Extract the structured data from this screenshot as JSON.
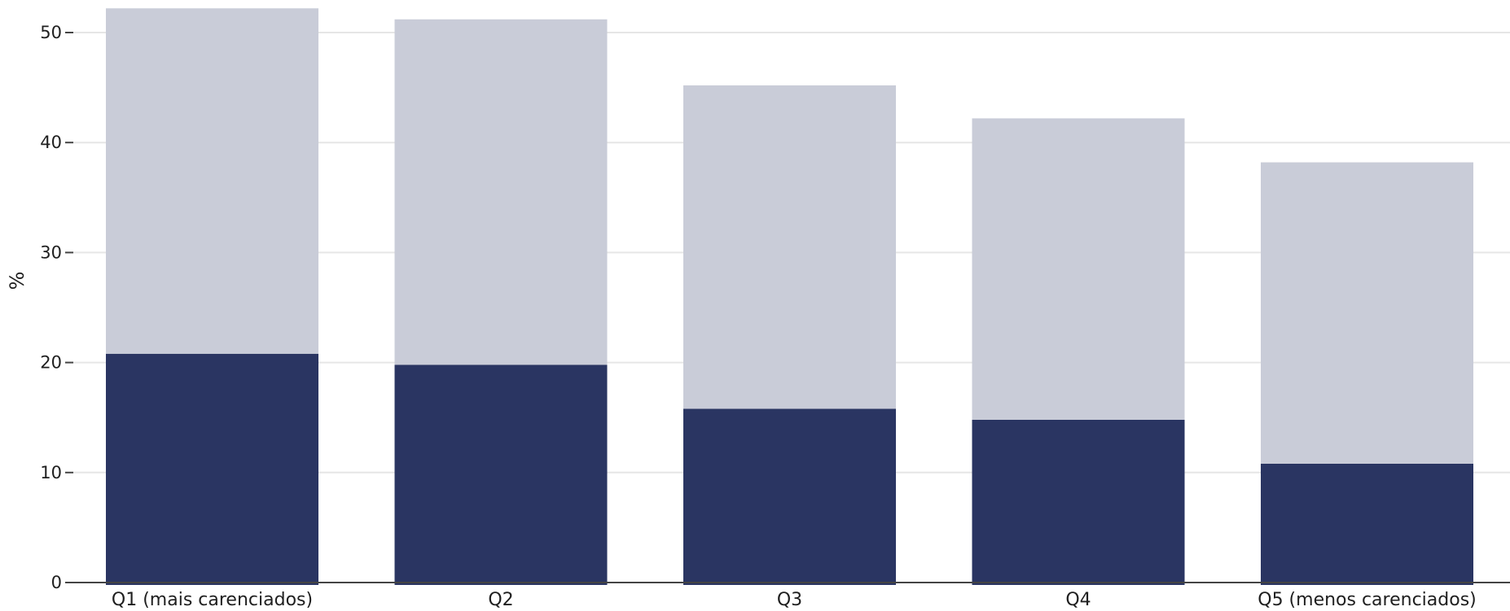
{
  "chart_data": {
    "type": "bar",
    "stacked": true,
    "categories": [
      "Q1 (mais carenciados)",
      "Q2",
      "Q3",
      "Q4",
      "Q5 (menos carenciados)"
    ],
    "series": [
      {
        "color": "#2a3562",
        "values": [
          20.8,
          19.8,
          15.8,
          14.8,
          10.8
        ]
      },
      {
        "color": "#c9ccd8",
        "values": [
          31.4,
          31.4,
          29.4,
          27.4,
          27.4
        ]
      }
    ],
    "totals": [
      52.2,
      51.2,
      45.2,
      42.2,
      38.2
    ],
    "xlabel": "",
    "ylabel": "%",
    "ylim": [
      0,
      52.2
    ],
    "yticks": [
      0,
      10,
      20,
      30,
      40,
      50
    ],
    "grid": true,
    "legend": "none"
  }
}
